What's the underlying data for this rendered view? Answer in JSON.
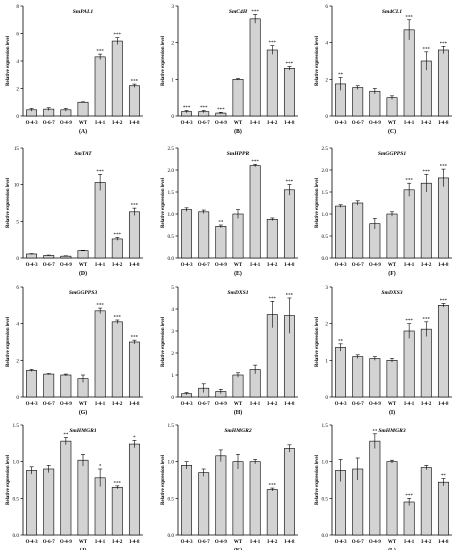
{
  "figure": {
    "categories": [
      "O-4-3",
      "O-6-7",
      "O-4-9",
      "WT",
      "I-4-1",
      "I-4-2",
      "I-4-8"
    ],
    "ylabel": "Relative expression level",
    "colors": {
      "bar": "#d3d3d3",
      "stroke": "#000000"
    }
  },
  "chart_data": [
    {
      "panel": "(A)",
      "title": "SmPAL1",
      "type": "bar",
      "categories": [
        "O-4-3",
        "O-6-7",
        "O-4-9",
        "WT",
        "I-4-1",
        "I-4-2",
        "I-4-8"
      ],
      "values": [
        0.45,
        0.5,
        0.45,
        1.0,
        4.3,
        5.45,
        2.2
      ],
      "errors": [
        0.1,
        0.1,
        0.1,
        0.03,
        0.2,
        0.25,
        0.12
      ],
      "annotations": [
        "",
        "",
        "",
        "",
        "***",
        "***",
        "***"
      ],
      "ylim": [
        0,
        8
      ],
      "yticks": [
        0,
        2,
        4,
        6,
        8
      ],
      "ylabel": "Relative expression level"
    },
    {
      "panel": "(B)",
      "title": "SmC4H",
      "type": "bar",
      "categories": [
        "O-4-3",
        "O-6-7",
        "O-4-9",
        "WT",
        "I-4-1",
        "I-4-2",
        "I-4-8"
      ],
      "values": [
        0.12,
        0.12,
        0.08,
        1.0,
        2.65,
        1.8,
        1.3
      ],
      "errors": [
        0.03,
        0.03,
        0.02,
        0.02,
        0.12,
        0.12,
        0.05
      ],
      "annotations": [
        "***",
        "***",
        "***",
        "",
        "***",
        "***",
        "***"
      ],
      "ylim": [
        0,
        3
      ],
      "yticks": [
        0,
        1,
        2,
        3
      ],
      "ylabel": "Relative expression level"
    },
    {
      "panel": "(C)",
      "title": "Sm4CL1",
      "type": "bar",
      "categories": [
        "O-4-3",
        "O-6-7",
        "O-4-9",
        "WT",
        "I-4-1",
        "I-4-2",
        "I-4-8"
      ],
      "values": [
        1.75,
        1.55,
        1.35,
        1.0,
        4.7,
        3.0,
        3.6
      ],
      "errors": [
        0.35,
        0.1,
        0.15,
        0.1,
        0.55,
        0.5,
        0.2
      ],
      "annotations": [
        "**",
        "",
        "",
        "",
        "***",
        "***",
        "***"
      ],
      "ylim": [
        0,
        6
      ],
      "yticks": [
        0,
        2,
        4,
        6
      ],
      "ylabel": "Relative expression level"
    },
    {
      "panel": "(D)",
      "title": "SmTAT",
      "type": "bar",
      "categories": [
        "O-4-3",
        "O-6-7",
        "O-4-9",
        "WT",
        "I-4-1",
        "I-4-2",
        "I-4-8"
      ],
      "values": [
        0.55,
        0.35,
        0.25,
        1.0,
        10.3,
        2.6,
        6.3
      ],
      "errors": [
        0.05,
        0.05,
        0.05,
        0.05,
        1.1,
        0.2,
        0.5
      ],
      "annotations": [
        "",
        "",
        "",
        "",
        "***",
        "***",
        "***"
      ],
      "ylim": [
        0,
        15
      ],
      "yticks": [
        0,
        5,
        10,
        15
      ],
      "ylabel": "Relative expression level"
    },
    {
      "panel": "(E)",
      "title": "SmHPPR",
      "type": "bar",
      "categories": [
        "O-4-3",
        "O-6-7",
        "O-4-9",
        "WT",
        "I-4-1",
        "I-4-2",
        "I-4-8"
      ],
      "values": [
        1.1,
        1.05,
        0.72,
        1.0,
        2.1,
        0.88,
        1.55
      ],
      "errors": [
        0.04,
        0.04,
        0.03,
        0.1,
        0.03,
        0.03,
        0.12
      ],
      "annotations": [
        "",
        "",
        "**",
        "",
        "***",
        "",
        "***"
      ],
      "ylim": [
        0,
        2.5
      ],
      "yticks": [
        0,
        0.5,
        1.0,
        1.5,
        2.0,
        2.5
      ],
      "ylabel": "Relative expression level"
    },
    {
      "panel": "(F)",
      "title": "SmGGPPS1",
      "type": "bar",
      "categories": [
        "O-4-3",
        "O-6-7",
        "O-4-9",
        "WT",
        "I-4-1",
        "I-4-2",
        "I-4-8"
      ],
      "values": [
        1.18,
        1.25,
        0.78,
        1.0,
        1.55,
        1.7,
        1.82
      ],
      "errors": [
        0.03,
        0.05,
        0.12,
        0.05,
        0.15,
        0.2,
        0.2
      ],
      "annotations": [
        "",
        "",
        "",
        "",
        "***",
        "***",
        "***"
      ],
      "ylim": [
        0,
        2.5
      ],
      "yticks": [
        0,
        0.5,
        1.0,
        1.5,
        2.0,
        2.5
      ],
      "ylabel": "Relative expression level"
    },
    {
      "panel": "(G)",
      "title": "SmGGPPS3",
      "type": "bar",
      "categories": [
        "O-4-3",
        "O-6-7",
        "O-4-9",
        "WT",
        "I-4-1",
        "I-4-2",
        "I-4-8"
      ],
      "values": [
        1.45,
        1.25,
        1.2,
        1.0,
        4.7,
        4.1,
        3.0
      ],
      "errors": [
        0.05,
        0.03,
        0.05,
        0.2,
        0.15,
        0.1,
        0.1
      ],
      "annotations": [
        "",
        "",
        "",
        "",
        "***",
        "***",
        "***"
      ],
      "ylim": [
        0,
        6
      ],
      "yticks": [
        0,
        2,
        4,
        6
      ],
      "ylabel": "Relative expression level"
    },
    {
      "panel": "(H)",
      "title": "SmDXS1",
      "type": "bar",
      "categories": [
        "O-4-3",
        "O-6-7",
        "O-4-9",
        "WT",
        "I-4-1",
        "I-4-2",
        "I-4-8"
      ],
      "values": [
        0.15,
        0.4,
        0.25,
        1.0,
        1.25,
        3.75,
        3.7
      ],
      "errors": [
        0.05,
        0.2,
        0.1,
        0.1,
        0.2,
        0.6,
        0.8
      ],
      "annotations": [
        "",
        "",
        "",
        "",
        "",
        "***",
        "***"
      ],
      "ylim": [
        0,
        5
      ],
      "yticks": [
        0,
        1,
        2,
        3,
        4,
        5
      ],
      "ylabel": "Relative expression level"
    },
    {
      "panel": "(I)",
      "title": "SmDXS3",
      "type": "bar",
      "categories": [
        "O-4-3",
        "O-6-7",
        "O-4-9",
        "WT",
        "I-4-1",
        "I-4-2",
        "I-4-8"
      ],
      "values": [
        1.35,
        1.1,
        1.05,
        1.0,
        1.8,
        1.85,
        2.5
      ],
      "errors": [
        0.1,
        0.05,
        0.05,
        0.05,
        0.2,
        0.2,
        0.05
      ],
      "annotations": [
        "**",
        "",
        "",
        "",
        "***",
        "***",
        "***"
      ],
      "ylim": [
        0,
        3
      ],
      "yticks": [
        0,
        1,
        2,
        3
      ],
      "ylabel": "Relative expression level"
    },
    {
      "panel": "(J)",
      "title": "SmHMGR1",
      "type": "bar",
      "categories": [
        "O-4-3",
        "O-6-7",
        "O-4-9",
        "WT",
        "I-4-1",
        "I-4-2",
        "I-4-8"
      ],
      "values": [
        0.88,
        0.9,
        1.28,
        1.02,
        0.78,
        0.65,
        1.24
      ],
      "errors": [
        0.05,
        0.05,
        0.05,
        0.08,
        0.12,
        0.02,
        0.05
      ],
      "annotations": [
        "",
        "",
        "**",
        "",
        "*",
        "***",
        "*"
      ],
      "ylim": [
        0,
        1.5
      ],
      "yticks": [
        0,
        0.5,
        1.0,
        1.5
      ],
      "ylabel": "Relative expression level"
    },
    {
      "panel": "(K)",
      "title": "SmHMGR2",
      "type": "bar",
      "categories": [
        "O-4-3",
        "O-6-7",
        "O-4-9",
        "WT",
        "I-4-1",
        "I-4-2",
        "I-4-8"
      ],
      "values": [
        0.95,
        0.85,
        1.08,
        1.0,
        1.0,
        0.62,
        1.18
      ],
      "errors": [
        0.05,
        0.05,
        0.08,
        0.1,
        0.03,
        0.02,
        0.05
      ],
      "annotations": [
        "",
        "",
        "",
        "",
        "",
        "***",
        ""
      ],
      "ylim": [
        0,
        1.5
      ],
      "yticks": [
        0,
        0.5,
        1.0,
        1.5
      ],
      "ylabel": "Relative expression level"
    },
    {
      "panel": "(L)",
      "title": "SmHMGR3",
      "type": "bar",
      "categories": [
        "O-4-3",
        "O-6-7",
        "O-4-9",
        "WT",
        "I-4-1",
        "I-4-2",
        "I-4-8"
      ],
      "values": [
        0.88,
        0.9,
        1.28,
        1.0,
        0.45,
        0.92,
        0.72
      ],
      "errors": [
        0.15,
        0.15,
        0.1,
        0.02,
        0.05,
        0.03,
        0.05
      ],
      "annotations": [
        "",
        "",
        "**",
        "",
        "***",
        "",
        "**"
      ],
      "ylim": [
        0,
        1.5
      ],
      "yticks": [
        0,
        0.5,
        1.0,
        1.5
      ],
      "ylabel": "Relative expression level"
    }
  ]
}
